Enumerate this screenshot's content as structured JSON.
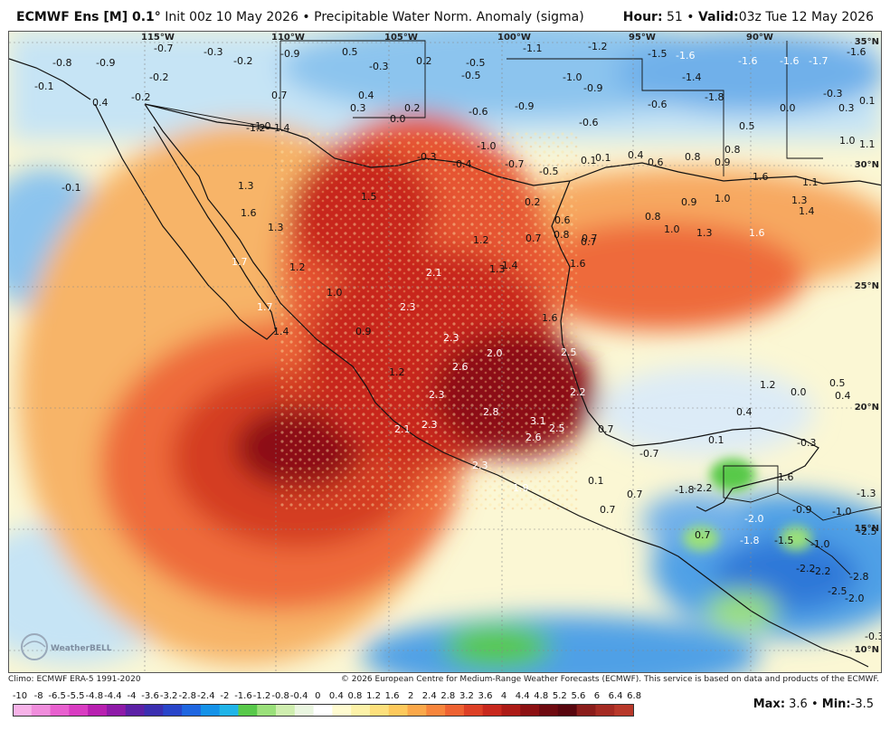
{
  "header": {
    "model": "ECMWF Ens [M] 0.1",
    "degree": "°",
    "init": " Init 00z 10 May 2026",
    "bullet": " • ",
    "field": "Precipitable Water Norm. Anomaly (sigma)",
    "hour_label": "Hour:",
    "hour_value": " 51",
    "valid_label": "Valid:",
    "valid_value": "03z Tue 12 May 2026"
  },
  "grid_labels": {
    "lon": [
      "115°W",
      "110°W",
      "105°W",
      "100°W",
      "95°W",
      "90°W"
    ],
    "lat": [
      "35°N",
      "30°N",
      "25°N",
      "20°N",
      "15°N",
      "10°N"
    ]
  },
  "values": [
    {
      "t": "-0.7",
      "c": "dark"
    },
    {
      "t": "-0.3",
      "c": "dark"
    },
    {
      "t": "-0.2",
      "c": "dark"
    },
    {
      "t": "-0.9",
      "c": "dark"
    },
    {
      "t": "0.5",
      "c": "dark"
    },
    {
      "t": "-0.3",
      "c": "dark"
    },
    {
      "t": "0.2",
      "c": "dark"
    },
    {
      "t": "-0.5",
      "c": "dark"
    },
    {
      "t": "-1.1",
      "c": "dark"
    },
    {
      "t": "-1.2",
      "c": "dark"
    },
    {
      "t": "-1.5",
      "c": "dark"
    },
    {
      "t": "-1.6",
      "c": "light"
    },
    {
      "t": "-1.6",
      "c": "light"
    },
    {
      "t": "-1.6",
      "c": "light"
    },
    {
      "t": "-1.7",
      "c": "light"
    },
    {
      "t": "-1.6",
      "c": "dark"
    },
    {
      "t": "-0.8",
      "c": "dark"
    },
    {
      "t": "-0.9",
      "c": "dark"
    },
    {
      "t": "-0.2",
      "c": "dark"
    },
    {
      "t": "-0.1",
      "c": "dark"
    },
    {
      "t": "0.7",
      "c": "dark"
    },
    {
      "t": "0.4",
      "c": "dark"
    },
    {
      "t": "-0.5",
      "c": "dark"
    },
    {
      "t": "-1.0",
      "c": "dark"
    },
    {
      "t": "-1.1",
      "c": "dark"
    },
    {
      "t": "-1.2",
      "c": "dark"
    },
    {
      "t": "-1.4",
      "c": "dark"
    },
    {
      "t": "-1.8",
      "c": "dark"
    },
    {
      "t": "0.4",
      "c": "dark"
    },
    {
      "t": "-0.2",
      "c": "dark"
    },
    {
      "t": "0.3",
      "c": "dark"
    },
    {
      "t": "0.2",
      "c": "dark"
    },
    {
      "t": "0.0",
      "c": "dark"
    },
    {
      "t": "-0.6",
      "c": "dark"
    },
    {
      "t": "-0.9",
      "c": "dark"
    },
    {
      "t": "-0.6",
      "c": "dark"
    },
    {
      "t": "-0.6",
      "c": "dark"
    },
    {
      "t": "-0.8",
      "c": "dark"
    },
    {
      "t": "-0.6",
      "c": "dark"
    },
    {
      "t": "-0.3",
      "c": "dark"
    },
    {
      "t": "0.1",
      "c": "dark"
    },
    {
      "t": "-1.2",
      "c": "dark"
    },
    {
      "t": "-1.0",
      "c": "dark"
    },
    {
      "t": "1.4",
      "c": "dark"
    },
    {
      "t": "-0.9",
      "c": "dark"
    },
    {
      "t": "-0.7",
      "c": "dark"
    },
    {
      "t": "-0.6",
      "c": "dark"
    },
    {
      "t": "0.5",
      "c": "dark"
    },
    {
      "t": "0.0",
      "c": "dark"
    },
    {
      "t": "0.3",
      "c": "dark"
    },
    {
      "t": "-0.3",
      "c": "dark"
    },
    {
      "t": "-0.4",
      "c": "dark"
    },
    {
      "t": "-1.0",
      "c": "dark"
    },
    {
      "t": "-0.7",
      "c": "dark"
    },
    {
      "t": "-0.5",
      "c": "dark"
    },
    {
      "t": "0.1",
      "c": "dark"
    },
    {
      "t": "0.1",
      "c": "dark"
    },
    {
      "t": "0.4",
      "c": "dark"
    },
    {
      "t": "0.6",
      "c": "dark"
    },
    {
      "t": "0.8",
      "c": "dark"
    },
    {
      "t": "0.8",
      "c": "dark"
    },
    {
      "t": "0.9",
      "c": "dark"
    },
    {
      "t": "1.6",
      "c": "dark"
    },
    {
      "t": "1.0",
      "c": "dark"
    },
    {
      "t": "1.1",
      "c": "dark"
    },
    {
      "t": "-0.1",
      "c": "dark"
    },
    {
      "t": "1.3",
      "c": "dark"
    },
    {
      "t": "1.5",
      "c": "dark"
    },
    {
      "t": "0.2",
      "c": "dark"
    },
    {
      "t": "0.9",
      "c": "dark"
    },
    {
      "t": "1.0",
      "c": "dark"
    },
    {
      "t": "1.1",
      "c": "dark"
    },
    {
      "t": "1.3",
      "c": "dark"
    },
    {
      "t": "1.4",
      "c": "dark"
    },
    {
      "t": "1.6",
      "c": "dark"
    },
    {
      "t": "1.3",
      "c": "dark"
    },
    {
      "t": "0.6",
      "c": "dark"
    },
    {
      "t": "0.7",
      "c": "dark"
    },
    {
      "t": "0.8",
      "c": "dark"
    },
    {
      "t": "1.0",
      "c": "dark"
    },
    {
      "t": "1.3",
      "c": "dark"
    },
    {
      "t": "1.6",
      "c": "light"
    },
    {
      "t": "1.2",
      "c": "dark"
    },
    {
      "t": "0.7",
      "c": "dark"
    },
    {
      "t": "0.8",
      "c": "dark"
    },
    {
      "t": "0.7",
      "c": "dark"
    },
    {
      "t": "1.7",
      "c": "light"
    },
    {
      "t": "1.2",
      "c": "dark"
    },
    {
      "t": "1.3",
      "c": "dark"
    },
    {
      "t": "1.4",
      "c": "dark"
    },
    {
      "t": "1.6",
      "c": "dark"
    },
    {
      "t": "2.1",
      "c": "light"
    },
    {
      "t": "1.0",
      "c": "dark"
    },
    {
      "t": "1.7",
      "c": "light"
    },
    {
      "t": "2.3",
      "c": "light"
    },
    {
      "t": "1.6",
      "c": "dark"
    },
    {
      "t": "1.4",
      "c": "dark"
    },
    {
      "t": "0.9",
      "c": "dark"
    },
    {
      "t": "2.3",
      "c": "light"
    },
    {
      "t": "2.0",
      "c": "light"
    },
    {
      "t": "2.5",
      "c": "light"
    },
    {
      "t": "2.6",
      "c": "light"
    },
    {
      "t": "1.2",
      "c": "dark"
    },
    {
      "t": "2.3",
      "c": "light"
    },
    {
      "t": "2.2",
      "c": "light"
    },
    {
      "t": "2.8",
      "c": "light"
    },
    {
      "t": "3.1",
      "c": "light"
    },
    {
      "t": "2.5",
      "c": "light"
    },
    {
      "t": "2.6",
      "c": "light"
    },
    {
      "t": "2.1",
      "c": "light"
    },
    {
      "t": "2.3",
      "c": "light"
    },
    {
      "t": "0.7",
      "c": "dark"
    },
    {
      "t": "1.2",
      "c": "dark"
    },
    {
      "t": "0.0",
      "c": "dark"
    },
    {
      "t": "0.5",
      "c": "dark"
    },
    {
      "t": "0.4",
      "c": "dark"
    },
    {
      "t": "0.4",
      "c": "dark"
    },
    {
      "t": "0.1",
      "c": "dark"
    },
    {
      "t": "-0.7",
      "c": "dark"
    },
    {
      "t": "-0.3",
      "c": "dark"
    },
    {
      "t": "2.3",
      "c": "light"
    },
    {
      "t": "1.9",
      "c": "light"
    },
    {
      "t": "0.1",
      "c": "dark"
    },
    {
      "t": "-1.8",
      "c": "dark"
    },
    {
      "t": "-2.2",
      "c": "dark"
    },
    {
      "t": "-1.6",
      "c": "dark"
    },
    {
      "t": "-1.3",
      "c": "dark"
    },
    {
      "t": "0.7",
      "c": "dark"
    },
    {
      "t": "0.7",
      "c": "dark"
    },
    {
      "t": "-0.9",
      "c": "dark"
    },
    {
      "t": "-1.0",
      "c": "dark"
    },
    {
      "t": "-2.0",
      "c": "light"
    },
    {
      "t": "-2.5",
      "c": "dark"
    },
    {
      "t": "0.7",
      "c": "dark"
    },
    {
      "t": "-1.8",
      "c": "light"
    },
    {
      "t": "-1.5",
      "c": "dark"
    },
    {
      "t": "-1.0",
      "c": "dark"
    },
    {
      "t": "-2.2",
      "c": "dark"
    },
    {
      "t": "-2.2",
      "c": "dark"
    },
    {
      "t": "-2.8",
      "c": "dark"
    },
    {
      "t": "-2.5",
      "c": "dark"
    },
    {
      "t": "-2.0",
      "c": "dark"
    },
    {
      "t": "-0.3",
      "c": "dark"
    }
  ],
  "footer": {
    "climo": "Climo: ECMWF ERA-5 1991-2020",
    "copyright": "© 2026 European Centre for Medium-Range Weather Forecasts (ECMWF). This service is based on data and products of the ECMWF.",
    "max_label": "Max:",
    "max_value": " 3.6",
    "min_label": "Min:",
    "min_value": "-3.5",
    "logo_text": "WeatherBELL"
  },
  "colorbar": {
    "ticks": [
      "-10",
      "-8",
      "-6.5",
      "-5.5",
      "-4.8",
      "-4.4",
      "-4",
      "-3.6",
      "-3.2",
      "-2.8",
      "-2.4",
      "-2",
      "-1.6",
      "-1.2",
      "-0.8",
      "-0.4",
      "0",
      "0.4",
      "0.8",
      "1.2",
      "1.6",
      "2",
      "2.4",
      "2.8",
      "3.2",
      "3.6",
      "4",
      "4.4",
      "4.8",
      "5.2",
      "5.6",
      "6",
      "6.4",
      "6.8"
    ],
    "colors": [
      "#f7b2e8",
      "#f08ddc",
      "#e860cf",
      "#d93cc2",
      "#b820b0",
      "#8e1aa8",
      "#5c21a6",
      "#3b2fb0",
      "#2945c9",
      "#1f66e0",
      "#1592e8",
      "#20b4e8",
      "#58c94a",
      "#9ae07a",
      "#cfeeaf",
      "#eaf6e0",
      "#ffffff",
      "#fffbd0",
      "#fdf2a8",
      "#fde07c",
      "#fdc95c",
      "#fba84a",
      "#f7853c",
      "#ee6232",
      "#dd4026",
      "#c8281d",
      "#ac1a16",
      "#8c1012",
      "#6e0a10",
      "#58060e",
      "#8a1c1a",
      "#a42a22",
      "#b8382a"
    ]
  }
}
